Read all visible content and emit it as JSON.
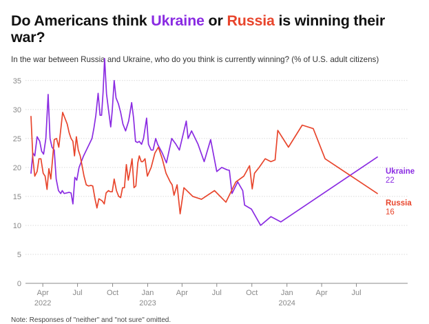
{
  "header": {
    "title_part1": "Do Americans think ",
    "title_ukraine": "Ukraine",
    "title_part2": " or ",
    "title_russia": "Russia",
    "title_part3": " is winning their war?",
    "subtitle": "In the war between Russia and Ukraine, who do you think is currently winning? (% of U.S. adult citizens)",
    "note": "Note: Responses of \"neither\" and \"not sure\" omitted."
  },
  "colors": {
    "ukraine": "#8a2be2",
    "russia": "#e8452c",
    "grid": "#d9d9d9",
    "axis": "#888888"
  },
  "chart_data": {
    "type": "line",
    "title": "Do Americans think Ukraine or Russia is winning their war?",
    "subtitle": "In the war between Russia and Ukraine, who do you think is currently winning? (% of U.S. adult citizens)",
    "xlabel": "",
    "ylabel": "",
    "ylim": [
      0,
      37
    ],
    "yticks": [
      0,
      5,
      10,
      15,
      20,
      25,
      30,
      35
    ],
    "grid": true,
    "legend": "end-labels",
    "xticks": [
      {
        "date": "2022-04-01",
        "label": "Apr",
        "year": "2022"
      },
      {
        "date": "2022-07-01",
        "label": "Jul",
        "year": ""
      },
      {
        "date": "2022-10-01",
        "label": "Oct",
        "year": ""
      },
      {
        "date": "2023-01-01",
        "label": "Jan",
        "year": "2023"
      },
      {
        "date": "2023-04-01",
        "label": "Apr",
        "year": ""
      },
      {
        "date": "2023-07-01",
        "label": "Jul",
        "year": ""
      },
      {
        "date": "2023-10-01",
        "label": "Oct",
        "year": ""
      },
      {
        "date": "2024-01-01",
        "label": "Jan",
        "year": "2024"
      },
      {
        "date": "2024-04-01",
        "label": "Apr",
        "year": ""
      },
      {
        "date": "2024-07-01",
        "label": "Jul",
        "year": ""
      }
    ],
    "series": [
      {
        "name": "Ukraine",
        "end_value": "22",
        "color": "#8a2be2",
        "points": [
          [
            "2022-03-01",
            19.0
          ],
          [
            "2022-03-06",
            22.5
          ],
          [
            "2022-03-11",
            22.0
          ],
          [
            "2022-03-17",
            25.3
          ],
          [
            "2022-03-24",
            24.5
          ],
          [
            "2022-03-29",
            22.8
          ],
          [
            "2022-04-03",
            22.3
          ],
          [
            "2022-04-09",
            25.0
          ],
          [
            "2022-04-15",
            32.6
          ],
          [
            "2022-04-20",
            25.0
          ],
          [
            "2022-04-25",
            23.5
          ],
          [
            "2022-05-01",
            23.0
          ],
          [
            "2022-05-06",
            18.0
          ],
          [
            "2022-05-12",
            16.0
          ],
          [
            "2022-05-18",
            15.5
          ],
          [
            "2022-05-22",
            16.0
          ],
          [
            "2022-05-27",
            15.5
          ],
          [
            "2022-06-02",
            15.6
          ],
          [
            "2022-06-09",
            15.7
          ],
          [
            "2022-06-14",
            15.6
          ],
          [
            "2022-06-19",
            13.7
          ],
          [
            "2022-06-24",
            18.3
          ],
          [
            "2022-06-29",
            17.8
          ],
          [
            "2022-07-05",
            20.0
          ],
          [
            "2022-07-17",
            22.0
          ],
          [
            "2022-07-28",
            23.5
          ],
          [
            "2022-08-08",
            25.0
          ],
          [
            "2022-08-13",
            26.8
          ],
          [
            "2022-08-18",
            29.0
          ],
          [
            "2022-08-24",
            32.8
          ],
          [
            "2022-08-29",
            29.0
          ],
          [
            "2022-09-02",
            29.0
          ],
          [
            "2022-09-06",
            33.0
          ],
          [
            "2022-09-10",
            38.8
          ],
          [
            "2022-09-15",
            32.7
          ],
          [
            "2022-09-20",
            30.0
          ],
          [
            "2022-09-26",
            27.0
          ],
          [
            "2022-09-30",
            29.8
          ],
          [
            "2022-10-05",
            35.0
          ],
          [
            "2022-10-10",
            32.0
          ],
          [
            "2022-10-16",
            31.0
          ],
          [
            "2022-10-22",
            29.5
          ],
          [
            "2022-10-28",
            27.5
          ],
          [
            "2022-11-04",
            26.3
          ],
          [
            "2022-11-12",
            28.0
          ],
          [
            "2022-11-20",
            31.2
          ],
          [
            "2022-11-25",
            28.5
          ],
          [
            "2022-11-30",
            24.5
          ],
          [
            "2022-12-05",
            24.3
          ],
          [
            "2022-12-10",
            24.5
          ],
          [
            "2022-12-16",
            24.0
          ],
          [
            "2022-12-21",
            25.0
          ],
          [
            "2022-12-29",
            28.5
          ],
          [
            "2023-01-03",
            24.0
          ],
          [
            "2023-01-10",
            23.0
          ],
          [
            "2023-01-15",
            23.0
          ],
          [
            "2023-01-22",
            25.0
          ],
          [
            "2023-01-27",
            24.0
          ],
          [
            "2023-02-08",
            22.5
          ],
          [
            "2023-02-19",
            20.8
          ],
          [
            "2023-03-05",
            25.0
          ],
          [
            "2023-03-16",
            24.0
          ],
          [
            "2023-03-25",
            23.0
          ],
          [
            "2023-04-12",
            28.0
          ],
          [
            "2023-04-17",
            25.0
          ],
          [
            "2023-04-26",
            26.3
          ],
          [
            "2023-05-13",
            24.0
          ],
          [
            "2023-05-29",
            21.0
          ],
          [
            "2023-06-15",
            24.8
          ],
          [
            "2023-07-01",
            19.3
          ],
          [
            "2023-07-14",
            20.0
          ],
          [
            "2023-07-28",
            19.6
          ],
          [
            "2023-08-03",
            19.5
          ],
          [
            "2023-08-10",
            15.5
          ],
          [
            "2023-08-25",
            17.5
          ],
          [
            "2023-09-07",
            16.0
          ],
          [
            "2023-09-12",
            13.5
          ],
          [
            "2023-09-30",
            12.8
          ],
          [
            "2023-10-24",
            10.0
          ],
          [
            "2023-11-20",
            11.5
          ],
          [
            "2023-12-16",
            10.6
          ],
          [
            "2024-08-25",
            21.8
          ]
        ]
      },
      {
        "name": "Russia",
        "end_value": "16",
        "color": "#e8452c",
        "points": [
          [
            "2022-03-01",
            28.8
          ],
          [
            "2022-03-06",
            21.5
          ],
          [
            "2022-03-11",
            18.5
          ],
          [
            "2022-03-17",
            19.3
          ],
          [
            "2022-03-22",
            21.5
          ],
          [
            "2022-03-27",
            21.5
          ],
          [
            "2022-04-02",
            19.0
          ],
          [
            "2022-04-07",
            18.5
          ],
          [
            "2022-04-12",
            16.2
          ],
          [
            "2022-04-17",
            19.8
          ],
          [
            "2022-04-22",
            18.0
          ],
          [
            "2022-05-01",
            24.8
          ],
          [
            "2022-05-07",
            25.0
          ],
          [
            "2022-05-13",
            23.5
          ],
          [
            "2022-05-23",
            29.5
          ],
          [
            "2022-06-04",
            27.5
          ],
          [
            "2022-06-09",
            26.0
          ],
          [
            "2022-06-14",
            25.0
          ],
          [
            "2022-06-19",
            24.5
          ],
          [
            "2022-06-23",
            22.0
          ],
          [
            "2022-06-28",
            25.3
          ],
          [
            "2022-07-03",
            23.0
          ],
          [
            "2022-07-08",
            22.0
          ],
          [
            "2022-07-18",
            18.5
          ],
          [
            "2022-07-24",
            17.0
          ],
          [
            "2022-07-30",
            16.8
          ],
          [
            "2022-08-05",
            16.9
          ],
          [
            "2022-08-10",
            16.8
          ],
          [
            "2022-08-16",
            14.5
          ],
          [
            "2022-08-21",
            13.0
          ],
          [
            "2022-08-26",
            14.6
          ],
          [
            "2022-09-04",
            14.2
          ],
          [
            "2022-09-09",
            13.7
          ],
          [
            "2022-09-14",
            15.6
          ],
          [
            "2022-09-20",
            16.0
          ],
          [
            "2022-09-25",
            15.8
          ],
          [
            "2022-09-30",
            15.8
          ],
          [
            "2022-10-05",
            18.0
          ],
          [
            "2022-10-11",
            16.0
          ],
          [
            "2022-10-17",
            15.0
          ],
          [
            "2022-10-22",
            14.8
          ],
          [
            "2022-10-27",
            16.5
          ],
          [
            "2022-11-01",
            16.5
          ],
          [
            "2022-11-06",
            20.5
          ],
          [
            "2022-11-11",
            17.8
          ],
          [
            "2022-11-16",
            19.5
          ],
          [
            "2022-11-21",
            21.5
          ],
          [
            "2022-11-26",
            16.5
          ],
          [
            "2022-12-01",
            16.8
          ],
          [
            "2022-12-06",
            20.8
          ],
          [
            "2022-12-10",
            22.0
          ],
          [
            "2022-12-15",
            21.0
          ],
          [
            "2022-12-19",
            21.0
          ],
          [
            "2022-12-25",
            21.5
          ],
          [
            "2022-12-31",
            18.5
          ],
          [
            "2023-01-10",
            20.0
          ],
          [
            "2023-01-20",
            22.5
          ],
          [
            "2023-01-29",
            23.5
          ],
          [
            "2023-02-08",
            21.5
          ],
          [
            "2023-02-18",
            19.0
          ],
          [
            "2023-03-01",
            17.5
          ],
          [
            "2023-03-06",
            17.0
          ],
          [
            "2023-03-11",
            15.2
          ],
          [
            "2023-03-19",
            17.0
          ],
          [
            "2023-03-27",
            12.0
          ],
          [
            "2023-04-06",
            16.5
          ],
          [
            "2023-04-29",
            15.0
          ],
          [
            "2023-05-22",
            14.5
          ],
          [
            "2023-06-25",
            16.0
          ],
          [
            "2023-07-25",
            14.0
          ],
          [
            "2023-08-20",
            17.5
          ],
          [
            "2023-09-10",
            18.5
          ],
          [
            "2023-09-25",
            20.3
          ],
          [
            "2023-10-02",
            16.3
          ],
          [
            "2023-10-08",
            19.0
          ],
          [
            "2023-10-20",
            20.0
          ],
          [
            "2023-11-05",
            21.5
          ],
          [
            "2023-11-20",
            21.0
          ],
          [
            "2023-12-01",
            21.3
          ],
          [
            "2023-12-08",
            26.4
          ],
          [
            "2024-01-05",
            23.5
          ],
          [
            "2024-02-10",
            27.3
          ],
          [
            "2024-03-10",
            26.7
          ],
          [
            "2024-04-10",
            21.5
          ],
          [
            "2024-08-25",
            15.5
          ]
        ]
      }
    ]
  }
}
